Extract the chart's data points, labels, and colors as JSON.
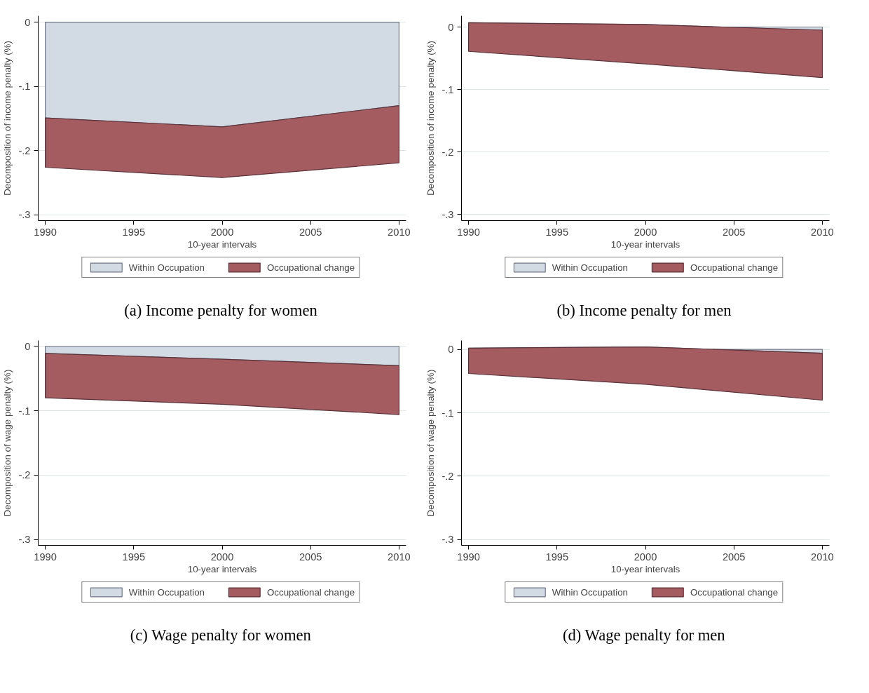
{
  "chart_data": [
    {
      "type": "area",
      "title": "(a) Income penalty for women",
      "xlabel": "10-year intervals",
      "ylabel": "Decomposition of income penalty (%)",
      "x": [
        1990,
        2000,
        2010
      ],
      "stacked": true,
      "xlim": [
        1989.6,
        2010.4
      ],
      "ylim": [
        -0.309,
        0.01
      ],
      "xticks": [
        1990,
        1995,
        2000,
        2005,
        2010
      ],
      "yticks": [
        {
          "value": 0,
          "label": "0"
        },
        {
          "value": -0.1,
          "label": "-.1"
        },
        {
          "value": -0.2,
          "label": "-.2"
        },
        {
          "value": -0.3,
          "label": "-.3"
        }
      ],
      "grid": "y",
      "legend": "bottom",
      "series": [
        {
          "name": "Within Occupation",
          "color": "#d2dae3",
          "values": [
            -0.149,
            -0.163,
            -0.13
          ]
        },
        {
          "name": "Occupational change",
          "color": "#a55c60",
          "values": [
            -0.077,
            -0.079,
            -0.089
          ]
        }
      ]
    },
    {
      "type": "area",
      "title": "(b) Income penalty for men",
      "xlabel": "10-year intervals",
      "ylabel": "Decomposition of income penalty (%)",
      "x": [
        1990,
        2000,
        2010
      ],
      "stacked": true,
      "xlim": [
        1989.6,
        2010.4
      ],
      "ylim": [
        -0.31,
        0.018
      ],
      "xticks": [
        1990,
        1995,
        2000,
        2005,
        2010
      ],
      "yticks": [
        {
          "value": 0,
          "label": "0"
        },
        {
          "value": -0.1,
          "label": "-.1"
        },
        {
          "value": -0.2,
          "label": "-.2"
        },
        {
          "value": -0.3,
          "label": "-.3"
        }
      ],
      "grid": "y",
      "legend": "bottom",
      "series": [
        {
          "name": "Within Occupation",
          "color": "#d2dae3",
          "values": [
            0.007,
            0.004,
            -0.005
          ]
        },
        {
          "name": "Occupational change",
          "color": "#a55c60",
          "values": [
            -0.046,
            -0.063,
            -0.076
          ]
        }
      ]
    },
    {
      "type": "area",
      "title": "(c) Wage penalty for women",
      "xlabel": "10-year intervals",
      "ylabel": "Decomposition of wage penalty (%)",
      "x": [
        1990,
        2000,
        2010
      ],
      "stacked": true,
      "xlim": [
        1989.6,
        2010.4
      ],
      "ylim": [
        -0.309,
        0.009
      ],
      "xticks": [
        1990,
        1995,
        2000,
        2005,
        2010
      ],
      "yticks": [
        {
          "value": 0,
          "label": "0"
        },
        {
          "value": -0.1,
          "label": "-.1"
        },
        {
          "value": -0.2,
          "label": "-.2"
        },
        {
          "value": -0.3,
          "label": "-.3"
        }
      ],
      "grid": "y",
      "legend": "bottom",
      "series": [
        {
          "name": "Within Occupation",
          "color": "#d2dae3",
          "values": [
            -0.011,
            -0.02,
            -0.03
          ]
        },
        {
          "name": "Occupational change",
          "color": "#a55c60",
          "values": [
            -0.069,
            -0.07,
            -0.076
          ]
        }
      ]
    },
    {
      "type": "area",
      "title": "(d) Wage penalty for men",
      "xlabel": "10-year intervals",
      "ylabel": "Decomposition of wage penalty (%)",
      "x": [
        1990,
        2000,
        2010
      ],
      "stacked": true,
      "xlim": [
        1989.6,
        2010.4
      ],
      "ylim": [
        -0.309,
        0.014
      ],
      "xticks": [
        1990,
        1995,
        2000,
        2005,
        2010
      ],
      "yticks": [
        {
          "value": 0,
          "label": "0"
        },
        {
          "value": -0.1,
          "label": "-.1"
        },
        {
          "value": -0.2,
          "label": "-.2"
        },
        {
          "value": -0.3,
          "label": "-.3"
        }
      ],
      "grid": "y",
      "legend": "bottom",
      "series": [
        {
          "name": "Within Occupation",
          "color": "#d2dae3",
          "values": [
            0.002,
            0.004,
            -0.006
          ]
        },
        {
          "name": "Occupational change",
          "color": "#a55c60",
          "values": [
            -0.04,
            -0.059,
            -0.074
          ]
        }
      ]
    }
  ]
}
